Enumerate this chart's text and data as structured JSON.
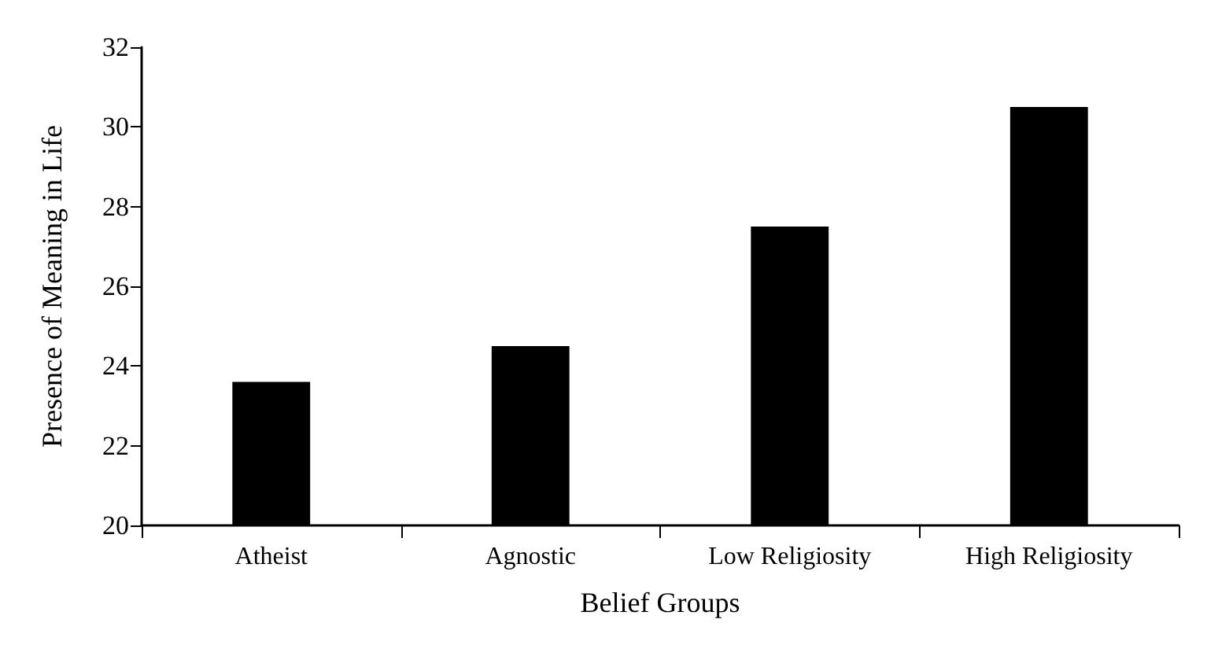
{
  "chart_data": {
    "type": "bar",
    "xlabel": "Belief Groups",
    "ylabel": "Presence of Meaning in Life",
    "categories": [
      "Atheist",
      "Agnostic",
      "Low Religiosity",
      "High Religiosity"
    ],
    "values": [
      23.6,
      24.5,
      27.5,
      30.5
    ],
    "color": "#000000",
    "ylim": [
      20,
      32
    ],
    "yticks": [
      20,
      22,
      24,
      26,
      28,
      30,
      32
    ],
    "grid": false
  }
}
